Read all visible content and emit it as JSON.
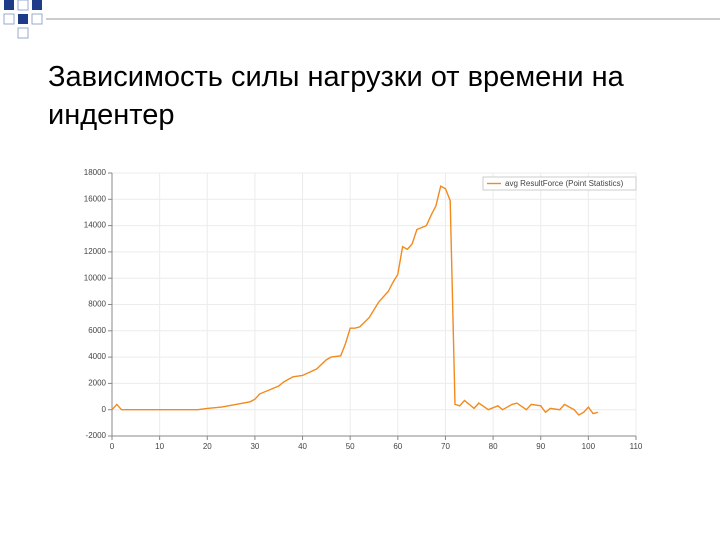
{
  "title": "Зависимость силы нагрузки от времени на индентер",
  "chart_data": {
    "type": "line",
    "x": [
      0,
      1,
      2,
      18,
      20,
      23,
      26,
      29,
      30,
      31,
      33,
      35,
      36,
      38,
      40,
      43,
      45,
      46,
      48,
      49,
      50,
      51,
      52,
      54,
      55,
      56,
      58,
      59,
      60,
      61,
      62,
      63,
      64,
      66,
      67,
      68,
      69,
      70,
      71,
      72,
      73,
      74,
      75,
      76,
      77,
      79,
      81,
      82,
      84,
      85,
      87,
      88,
      90,
      91,
      92,
      94,
      95,
      97,
      98,
      99,
      100,
      101,
      102
    ],
    "series": [
      {
        "name": "avg ResultForce (Point Statistics)",
        "color": "#f28a1e",
        "values": [
          0,
          400,
          0,
          0,
          100,
          200,
          400,
          600,
          800,
          1200,
          1500,
          1800,
          2100,
          2500,
          2600,
          3100,
          3800,
          4000,
          4100,
          5000,
          6200,
          6200,
          6300,
          7000,
          7600,
          8200,
          9000,
          9700,
          10300,
          12400,
          12200,
          12600,
          13700,
          14000,
          14800,
          15500,
          17000,
          16800,
          15900,
          400,
          300,
          700,
          400,
          100,
          500,
          0,
          300,
          0,
          400,
          500,
          0,
          400,
          300,
          -200,
          100,
          0,
          400,
          0,
          -400,
          -200,
          200,
          -300,
          -200
        ]
      }
    ],
    "xlim": [
      0,
      110
    ],
    "xticks": [
      0,
      10,
      20,
      30,
      40,
      50,
      60,
      70,
      80,
      90,
      100,
      110
    ],
    "ylim": [
      -2000,
      18000
    ],
    "yticks": [
      -2000,
      0,
      2000,
      4000,
      6000,
      8000,
      10000,
      12000,
      14000,
      16000,
      18000
    ],
    "grid": true,
    "legend": "upper right"
  }
}
